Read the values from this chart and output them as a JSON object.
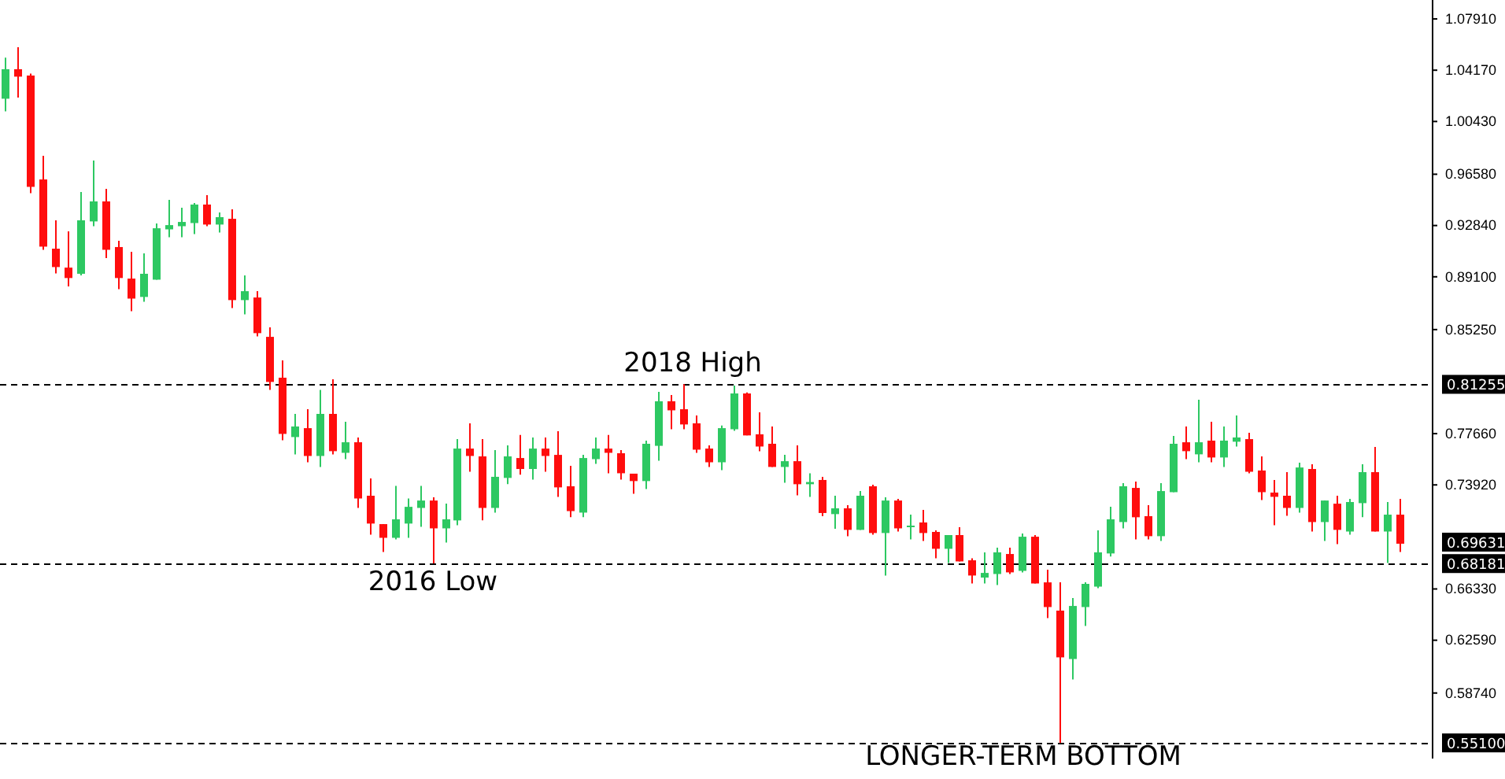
{
  "chart_data": {
    "type": "candlestick",
    "categories": [
      null,
      null,
      null,
      null,
      null,
      null,
      null,
      null,
      null,
      null,
      null,
      null,
      null,
      null,
      null,
      null,
      null,
      null,
      null,
      null,
      null,
      null,
      null,
      null,
      null,
      null,
      null,
      null,
      null,
      null,
      null,
      null,
      null,
      null,
      null,
      null,
      null,
      null,
      null,
      null,
      null,
      null,
      null,
      null,
      null,
      null,
      null,
      null,
      null,
      null,
      null,
      null,
      null,
      null,
      null,
      null,
      null,
      null,
      null,
      null,
      null,
      null,
      null,
      null,
      null,
      null,
      null,
      null,
      null,
      null,
      null,
      null,
      null,
      null,
      null,
      null,
      null,
      null,
      null,
      null,
      null,
      null,
      null,
      null,
      null,
      null,
      null,
      null,
      null,
      null,
      null,
      null,
      null,
      null,
      null,
      null,
      null,
      null,
      null,
      null,
      null,
      null,
      null,
      null,
      null,
      null,
      null,
      null,
      null,
      null,
      null,
      null
    ],
    "ohlc": [
      [
        1.0209,
        1.0508,
        1.0117,
        1.0424
      ],
      [
        1.0424,
        1.0585,
        1.0217,
        1.037
      ],
      [
        1.0378,
        1.0393,
        0.952,
        0.9566
      ],
      [
        0.962,
        0.9793,
        0.9107,
        0.913
      ],
      [
        0.9115,
        0.9322,
        0.8935,
        0.8981
      ],
      [
        0.8977,
        0.9241,
        0.884,
        0.8901
      ],
      [
        0.8932,
        0.9528,
        0.892,
        0.9322
      ],
      [
        0.9314,
        0.9758,
        0.9279,
        0.946
      ],
      [
        0.946,
        0.9551,
        0.9046,
        0.9107
      ],
      [
        0.9127,
        0.9173,
        0.882,
        0.8901
      ],
      [
        0.8897,
        0.9092,
        0.8659,
        0.8751
      ],
      [
        0.8763,
        0.9081,
        0.8728,
        0.8932
      ],
      [
        0.8889,
        0.9299,
        0.8889,
        0.9264
      ],
      [
        0.9256,
        0.9471,
        0.9199,
        0.9287
      ],
      [
        0.9279,
        0.9414,
        0.9199,
        0.931
      ],
      [
        0.9302,
        0.9448,
        0.9222,
        0.9437
      ],
      [
        0.9437,
        0.9506,
        0.9279,
        0.9291
      ],
      [
        0.9291,
        0.9379,
        0.9233,
        0.9345
      ],
      [
        0.9333,
        0.9402,
        0.8682,
        0.874
      ],
      [
        0.874,
        0.892,
        0.8636,
        0.8805
      ],
      [
        0.8759,
        0.8805,
        0.8476,
        0.8499
      ],
      [
        0.8472,
        0.8541,
        0.8085,
        0.8143
      ],
      [
        0.8174,
        0.83,
        0.7718,
        0.7764
      ],
      [
        0.7741,
        0.791,
        0.7615,
        0.7818
      ],
      [
        0.7806,
        0.7944,
        0.7557,
        0.7603
      ],
      [
        0.7603,
        0.8085,
        0.7523,
        0.791
      ],
      [
        0.791,
        0.8162,
        0.7615,
        0.7638
      ],
      [
        0.7626,
        0.7852,
        0.758,
        0.7703
      ],
      [
        0.7703,
        0.7738,
        0.7224,
        0.7293
      ],
      [
        0.7313,
        0.7439,
        0.7029,
        0.711
      ],
      [
        0.7106,
        0.7106,
        0.6903,
        0.7006
      ],
      [
        0.7006,
        0.7385,
        0.6995,
        0.7141
      ],
      [
        0.711,
        0.7293,
        0.7006,
        0.7232
      ],
      [
        0.7224,
        0.7385,
        0.7087,
        0.7278
      ],
      [
        0.7278,
        0.7301,
        0.682,
        0.7075
      ],
      [
        0.7075,
        0.7255,
        0.6972,
        0.7141
      ],
      [
        0.7133,
        0.7726,
        0.7098,
        0.7657
      ],
      [
        0.7657,
        0.7841,
        0.7488,
        0.7603
      ],
      [
        0.76,
        0.7726,
        0.7133,
        0.7224
      ],
      [
        0.7224,
        0.7646,
        0.719,
        0.7451
      ],
      [
        0.7443,
        0.768,
        0.7397,
        0.76
      ],
      [
        0.7588,
        0.7757,
        0.7466,
        0.7508
      ],
      [
        0.7508,
        0.7738,
        0.7431,
        0.7657
      ],
      [
        0.7657,
        0.7738,
        0.7488,
        0.7603
      ],
      [
        0.7611,
        0.7784,
        0.7305,
        0.7374
      ],
      [
        0.7382,
        0.7531,
        0.7156,
        0.7201
      ],
      [
        0.719,
        0.7611,
        0.7156,
        0.7588
      ],
      [
        0.758,
        0.7738,
        0.7546,
        0.7657
      ],
      [
        0.7657,
        0.7757,
        0.7477,
        0.7626
      ],
      [
        0.7623,
        0.7646,
        0.7431,
        0.7477
      ],
      [
        0.7474,
        0.7474,
        0.7328,
        0.742
      ],
      [
        0.742,
        0.7715,
        0.7362,
        0.7692
      ],
      [
        0.7677,
        0.8071,
        0.7569,
        0.8002
      ],
      [
        0.8002,
        0.8048,
        0.7798,
        0.7936
      ],
      [
        0.7944,
        0.8126,
        0.7798,
        0.7833
      ],
      [
        0.7841,
        0.7898,
        0.7626,
        0.7649
      ],
      [
        0.7657,
        0.768,
        0.7523,
        0.7557
      ],
      [
        0.7557,
        0.7826,
        0.75,
        0.7806
      ],
      [
        0.7798,
        0.8116,
        0.7787,
        0.8059
      ],
      [
        0.8059,
        0.8067,
        0.7753,
        0.7753
      ],
      [
        0.7761,
        0.7921,
        0.7638,
        0.7672
      ],
      [
        0.7692,
        0.7818,
        0.7523,
        0.7523
      ],
      [
        0.7523,
        0.7611,
        0.7408,
        0.7565
      ],
      [
        0.7565,
        0.768,
        0.7316,
        0.7397
      ],
      [
        0.7397,
        0.7477,
        0.7305,
        0.7413
      ],
      [
        0.7428,
        0.7451,
        0.7164,
        0.7187
      ],
      [
        0.7179,
        0.7313,
        0.7072,
        0.7221
      ],
      [
        0.7221,
        0.7244,
        0.7018,
        0.7064
      ],
      [
        0.7064,
        0.7347,
        0.7064,
        0.7313
      ],
      [
        0.7382,
        0.7393,
        0.7029,
        0.7041
      ],
      [
        0.7041,
        0.7301,
        0.6731,
        0.7278
      ],
      [
        0.7278,
        0.729,
        0.7052,
        0.7075
      ],
      [
        0.7087,
        0.7175,
        0.6995,
        0.7095
      ],
      [
        0.7118,
        0.721,
        0.6983,
        0.7041
      ],
      [
        0.7049,
        0.706,
        0.6857,
        0.6926
      ],
      [
        0.6926,
        0.7026,
        0.6823,
        0.7026
      ],
      [
        0.7026,
        0.7083,
        0.6834,
        0.6834
      ],
      [
        0.6842,
        0.6857,
        0.6673,
        0.6731
      ],
      [
        0.6716,
        0.69,
        0.6673,
        0.675
      ],
      [
        0.6742,
        0.6934,
        0.6662,
        0.69
      ],
      [
        0.6888,
        0.6934,
        0.6742,
        0.6754
      ],
      [
        0.6765,
        0.7037,
        0.6754,
        0.7014
      ],
      [
        0.7014,
        0.7026,
        0.6673,
        0.6673
      ],
      [
        0.6681,
        0.6773,
        0.6421,
        0.6501
      ],
      [
        0.6475,
        0.6681,
        0.551,
        0.6134
      ],
      [
        0.6122,
        0.6567,
        0.5973,
        0.6509
      ],
      [
        0.6501,
        0.6681,
        0.6363,
        0.667
      ],
      [
        0.665,
        0.706,
        0.6639,
        0.69
      ],
      [
        0.6892,
        0.7232,
        0.6869,
        0.7141
      ],
      [
        0.7121,
        0.7405,
        0.7075,
        0.7382
      ],
      [
        0.737,
        0.7416,
        0.6995,
        0.7156
      ],
      [
        0.7164,
        0.7244,
        0.6995,
        0.7018
      ],
      [
        0.7018,
        0.7405,
        0.6983,
        0.7347
      ],
      [
        0.7339,
        0.7749,
        0.7339,
        0.7692
      ],
      [
        0.7703,
        0.7818,
        0.758,
        0.7638
      ],
      [
        0.7615,
        0.8013,
        0.7557,
        0.7703
      ],
      [
        0.7715,
        0.7852,
        0.7557,
        0.7592
      ],
      [
        0.7592,
        0.7818,
        0.7523,
        0.7715
      ],
      [
        0.7707,
        0.7898,
        0.7672,
        0.7738
      ],
      [
        0.7726,
        0.7772,
        0.7477,
        0.7488
      ],
      [
        0.7497,
        0.76,
        0.7282,
        0.7339
      ],
      [
        0.7336,
        0.7428,
        0.7098,
        0.7305
      ],
      [
        0.7313,
        0.7485,
        0.7167,
        0.7224
      ],
      [
        0.7224,
        0.7554,
        0.719,
        0.7519
      ],
      [
        0.7508,
        0.7542,
        0.7052,
        0.7121
      ],
      [
        0.7121,
        0.7278,
        0.6983,
        0.7278
      ],
      [
        0.7255,
        0.7313,
        0.696,
        0.7064
      ],
      [
        0.7052,
        0.729,
        0.7029,
        0.7267
      ],
      [
        0.7259,
        0.7542,
        0.7156,
        0.7485
      ],
      [
        0.7485,
        0.7669,
        0.7052,
        0.7052
      ],
      [
        0.7052,
        0.7267,
        0.6823,
        0.7175
      ],
      [
        0.7175,
        0.729,
        0.6903,
        0.6963
      ]
    ],
    "ylim": [
      0.5396,
      1.0929
    ],
    "yticks": [
      {
        "value": 1.0791,
        "label": "1.07910"
      },
      {
        "value": 1.0417,
        "label": "1.04170"
      },
      {
        "value": 1.0043,
        "label": "1.00430"
      },
      {
        "value": 0.9658,
        "label": "0.96580"
      },
      {
        "value": 0.9284,
        "label": "0.92840"
      },
      {
        "value": 0.891,
        "label": "0.89100"
      },
      {
        "value": 0.8525,
        "label": "0.85250"
      },
      {
        "value": 0.7766,
        "label": "0.77660"
      },
      {
        "value": 0.7392,
        "label": "0.73920"
      },
      {
        "value": 0.6633,
        "label": "0.66330"
      },
      {
        "value": 0.6259,
        "label": "0.62590"
      },
      {
        "value": 0.5874,
        "label": "0.58740"
      }
    ],
    "ref_lines": [
      {
        "axis": "y",
        "value": 0.81255,
        "label": "0.81255",
        "line_style": "dashed",
        "color": "#000000"
      },
      {
        "axis": "y",
        "value": 0.68181,
        "label": "0.68181",
        "line_style": "dashed",
        "color": "#000000"
      },
      {
        "axis": "y",
        "value": 0.551,
        "label": "0.55100",
        "line_style": "dashed",
        "color": "#000000"
      }
    ],
    "annotations": [
      {
        "text": "2018 High",
        "y": 0.81255
      },
      {
        "text": "2016 Low",
        "y": 0.68181
      },
      {
        "text": "LONGER-TERM BOTTOM",
        "y": 0.551
      },
      "0.69631"
    ]
  }
}
